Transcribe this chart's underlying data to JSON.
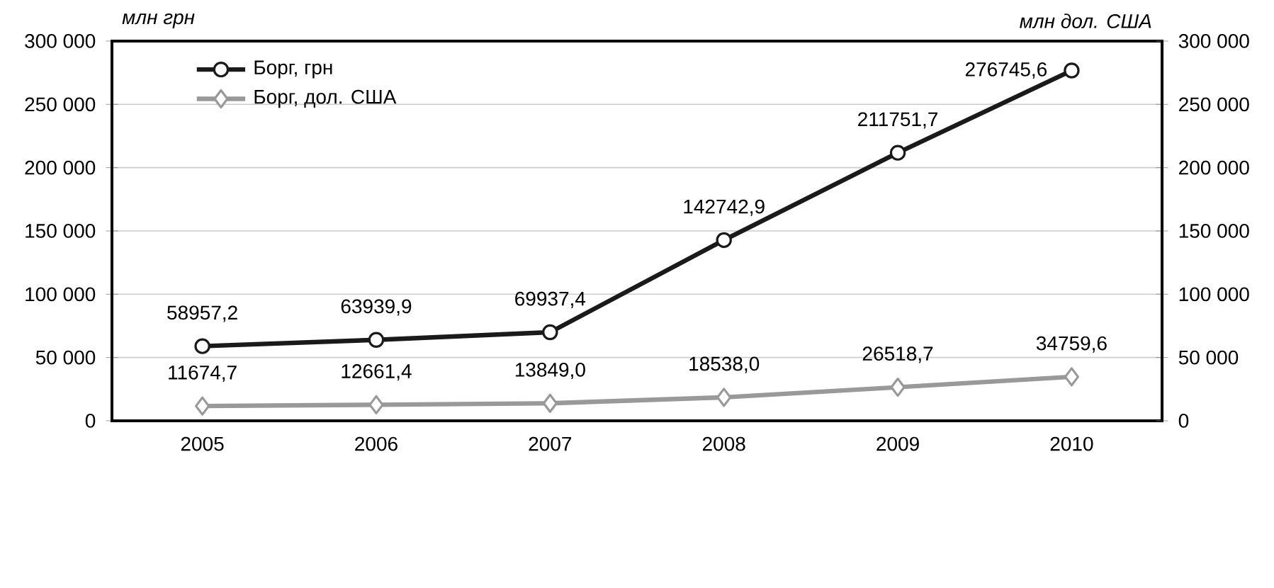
{
  "chart_data": {
    "type": "line",
    "categories": [
      "2005",
      "2006",
      "2007",
      "2008",
      "2009",
      "2010"
    ],
    "ylabel": "млн грн",
    "y2label": "млн дол. США",
    "ylim": [
      0,
      300000
    ],
    "yticks": [
      {
        "value": 0,
        "label": "0"
      },
      {
        "value": 50000,
        "label": "50 000"
      },
      {
        "value": 100000,
        "label": "100 000"
      },
      {
        "value": 150000,
        "label": "150 000"
      },
      {
        "value": 200000,
        "label": "200 000"
      },
      {
        "value": 250000,
        "label": "250 000"
      },
      {
        "value": 300000,
        "label": "300 000"
      }
    ],
    "y2lim": [
      0,
      300000
    ],
    "y2ticks": [
      {
        "value": 0,
        "label": "0"
      },
      {
        "value": 50000,
        "label": "50 000"
      },
      {
        "value": 100000,
        "label": "100 000"
      },
      {
        "value": 150000,
        "label": "150 000"
      },
      {
        "value": 200000,
        "label": "200 000"
      },
      {
        "value": 250000,
        "label": "250 000"
      },
      {
        "value": 300000,
        "label": "300 000"
      }
    ],
    "grid": "y",
    "legend": "top left",
    "series": [
      {
        "name": "Борг, грн",
        "color": "#1a1a1a",
        "marker": "circle",
        "values": [
          58957.2,
          63939.9,
          69937.4,
          142742.9,
          211751.7,
          276745.6
        ],
        "value_labels": [
          "58957,2",
          "63939,9",
          "69937,4",
          "142742,9",
          "211751,7",
          "276745,6"
        ]
      },
      {
        "name": "Борг, дол. США",
        "color": "#999999",
        "marker": "diamond",
        "axis": "y2",
        "values": [
          11674.7,
          12661.4,
          13849.0,
          18538.0,
          26518.7,
          34759.6
        ],
        "value_labels": [
          "11674,7",
          "12661,4",
          "13849,0",
          "18538,0",
          "26518,7",
          "34759,6"
        ]
      }
    ]
  }
}
